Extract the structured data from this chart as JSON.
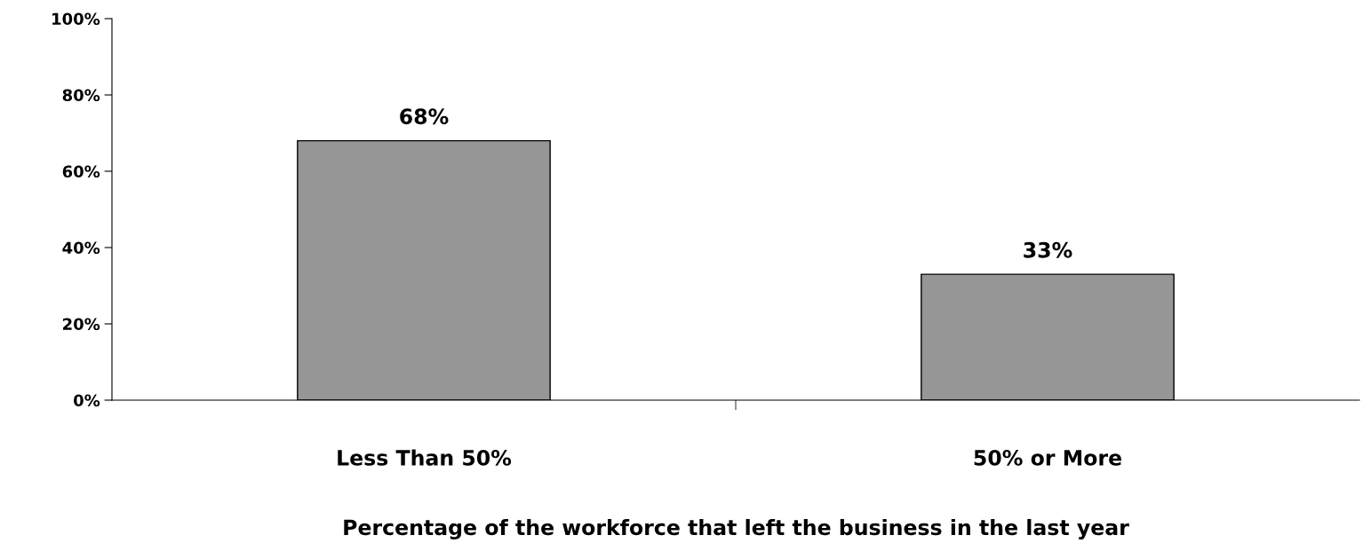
{
  "chart_data": {
    "type": "bar",
    "xlabel": "Percentage of the workforce that left the business in the last year",
    "categories": [
      "Less Than 50%",
      "50% or More"
    ],
    "series": [
      {
        "color": "#969696",
        "values": [
          68,
          33
        ]
      }
    ],
    "ylim": [
      0,
      100
    ],
    "yticks": [
      {
        "value": 0,
        "label": "0%"
      },
      {
        "value": 20,
        "label": "20%"
      },
      {
        "value": 40,
        "label": "40%"
      },
      {
        "value": 60,
        "label": "60%"
      },
      {
        "value": 80,
        "label": "80%"
      },
      {
        "value": 100,
        "label": "100%"
      }
    ],
    "value_labels": [
      "68%",
      "33%"
    ]
  }
}
